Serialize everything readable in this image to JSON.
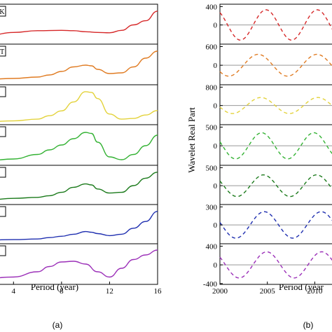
{
  "chart_data": [
    {
      "type": "line",
      "panel_label": "(a)",
      "xlabel": "Period (year)",
      "ylabel": "",
      "xlim": [
        2,
        16
      ],
      "x_ticks": [
        4,
        8,
        12,
        16
      ],
      "grid": false,
      "series": [
        {
          "tag": "K",
          "color": "#d62728",
          "x": [
            2,
            4,
            6,
            8,
            9,
            10,
            11,
            12,
            13,
            14,
            15,
            16
          ],
          "values": [
            0.2,
            0.28,
            0.33,
            0.34,
            0.33,
            0.3,
            0.28,
            0.27,
            0.34,
            0.5,
            0.62,
            0.9
          ]
        },
        {
          "tag": "T",
          "color": "#e07b22",
          "x": [
            2,
            4,
            6,
            7,
            8,
            9,
            10,
            10.5,
            11,
            12,
            13,
            14,
            15,
            16
          ],
          "values": [
            0.1,
            0.12,
            0.16,
            0.22,
            0.32,
            0.45,
            0.5,
            0.48,
            0.38,
            0.26,
            0.28,
            0.45,
            0.7,
            0.9
          ]
        },
        {
          "tag": "",
          "color": "#e3d23a",
          "x": [
            2,
            4,
            6,
            7,
            8,
            9,
            10,
            10.5,
            11,
            12,
            13,
            14,
            15,
            16
          ],
          "values": [
            0.03,
            0.05,
            0.1,
            0.2,
            0.34,
            0.6,
            0.9,
            0.88,
            0.7,
            0.25,
            0.1,
            0.12,
            0.22,
            0.35
          ]
        },
        {
          "tag": "",
          "color": "#33b233",
          "x": [
            2,
            4,
            6,
            7,
            8,
            9,
            10,
            10.5,
            11,
            12,
            13,
            14,
            15,
            16
          ],
          "values": [
            0.08,
            0.12,
            0.25,
            0.38,
            0.52,
            0.7,
            0.88,
            0.85,
            0.6,
            0.18,
            0.1,
            0.25,
            0.5,
            0.8
          ]
        },
        {
          "tag": "",
          "color": "#1b7a1b",
          "x": [
            2,
            4,
            6,
            7,
            8,
            9,
            10,
            10.5,
            11,
            12,
            13,
            14,
            15,
            16
          ],
          "values": [
            0.08,
            0.12,
            0.15,
            0.2,
            0.3,
            0.45,
            0.55,
            0.52,
            0.4,
            0.28,
            0.3,
            0.5,
            0.72,
            0.9
          ]
        },
        {
          "tag": "",
          "color": "#1f2fb0",
          "x": [
            2,
            4,
            6,
            7,
            8,
            9,
            10,
            10.5,
            11,
            12,
            13,
            14,
            15,
            16
          ],
          "values": [
            0.05,
            0.06,
            0.08,
            0.12,
            0.16,
            0.22,
            0.3,
            0.28,
            0.24,
            0.18,
            0.22,
            0.4,
            0.6,
            0.9
          ]
        },
        {
          "tag": "",
          "color": "#9b2fb8",
          "x": [
            2,
            4,
            6,
            7,
            8,
            9,
            10,
            11,
            12,
            13,
            14,
            15,
            16
          ],
          "values": [
            0.12,
            0.15,
            0.3,
            0.45,
            0.58,
            0.6,
            0.52,
            0.3,
            0.15,
            0.4,
            0.65,
            0.78,
            0.92
          ]
        }
      ]
    },
    {
      "type": "line",
      "panel_label": "(b)",
      "xlabel": "Period (year",
      "ylabel": "Wavelet Real Part",
      "xlim": [
        2000,
        2013
      ],
      "x_ticks": [
        2000,
        2005,
        2010
      ],
      "grid": false,
      "series": [
        {
          "color": "#d62728",
          "dashed": true,
          "amplitude": 330,
          "period": 5.4,
          "phase": 0.1,
          "y_ticks": [
            400,
            0
          ]
        },
        {
          "color": "#e07b22",
          "dashed": true,
          "amplitude": 350,
          "period": 6.2,
          "phase": 0.35,
          "y_ticks": [
            600,
            0
          ]
        },
        {
          "color": "#e3d23a",
          "dashed": true,
          "amplitude": 350,
          "period": 6.0,
          "phase": 0.28,
          "y_ticks": [
            800,
            0
          ]
        },
        {
          "color": "#33b233",
          "dashed": true,
          "amplitude": 350,
          "period": 5.5,
          "phase": 0.2,
          "y_ticks": [
            500,
            0
          ]
        },
        {
          "color": "#1b7a1b",
          "dashed": true,
          "amplitude": 300,
          "period": 5.6,
          "phase": 0.18,
          "y_ticks": [
            500,
            0
          ]
        },
        {
          "color": "#1f2fb0",
          "dashed": true,
          "amplitude": 220,
          "period": 6.0,
          "phase": 0.22,
          "y_ticks": [
            300,
            0
          ]
        },
        {
          "color": "#9b2fb8",
          "dashed": true,
          "amplitude": 280,
          "period": 5.8,
          "phase": 0.15,
          "y_ticks": [
            400,
            0,
            -400
          ]
        }
      ]
    }
  ]
}
